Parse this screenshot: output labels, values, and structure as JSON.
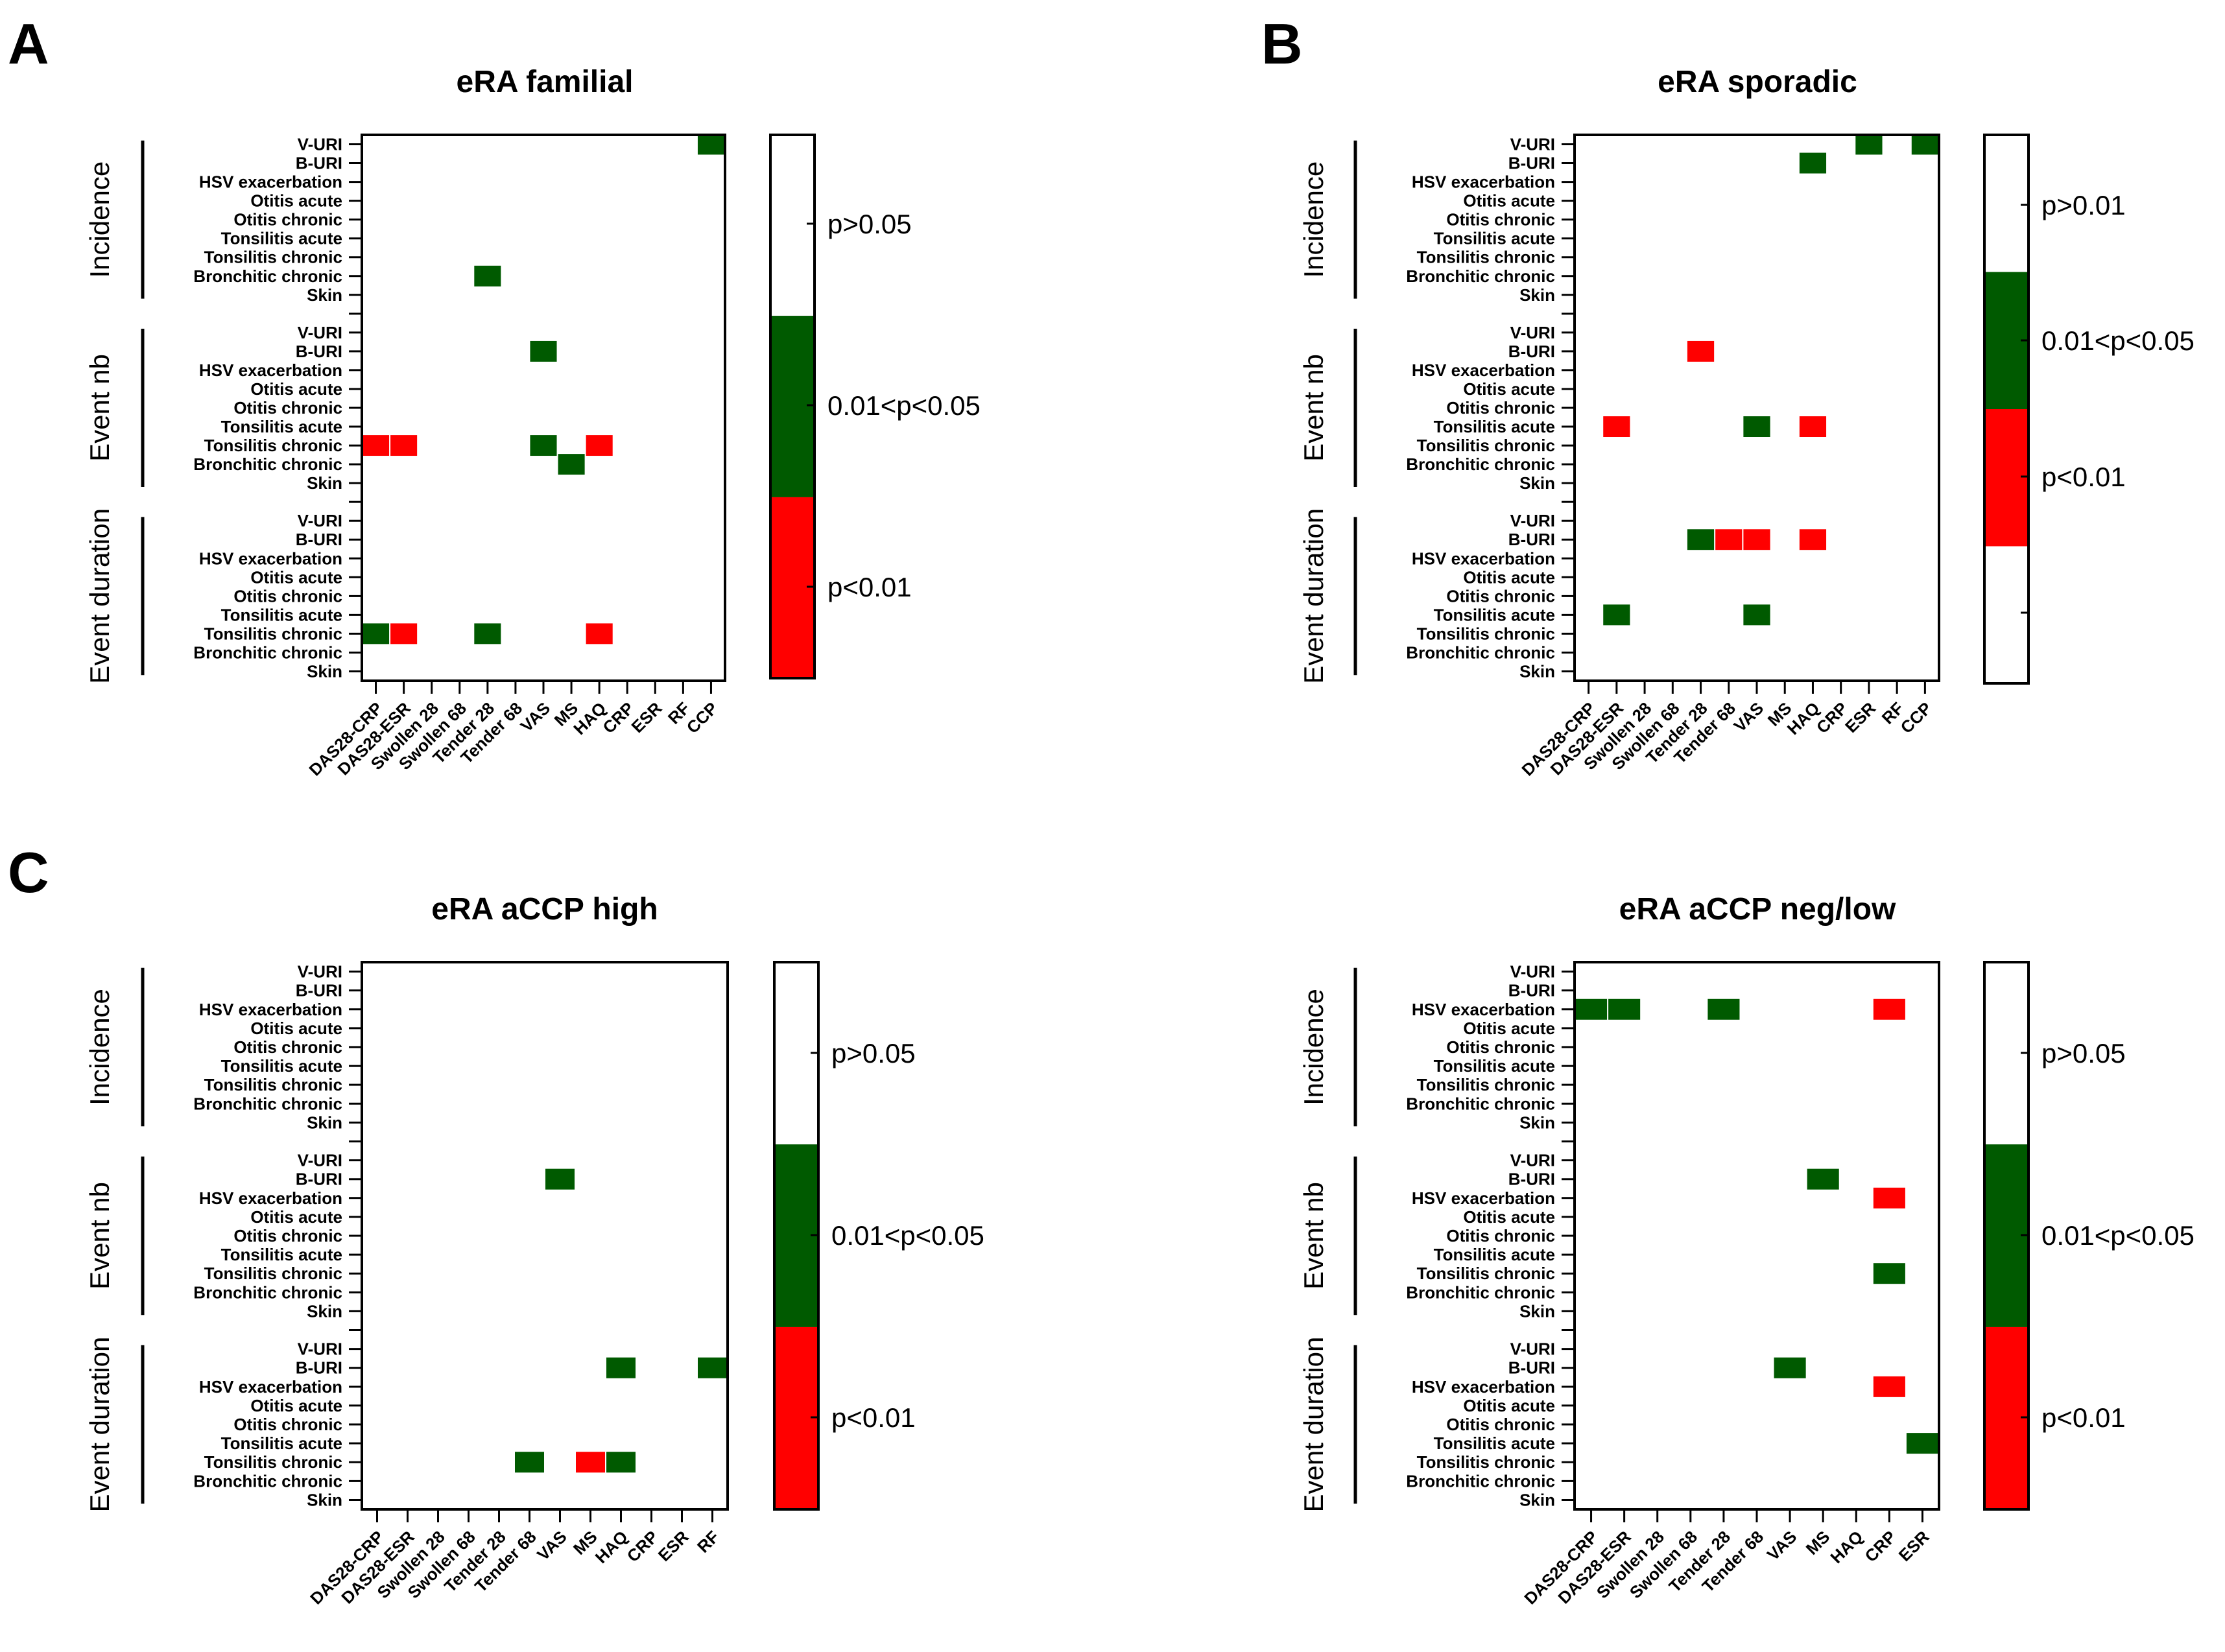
{
  "colors": {
    "green": "#005a00",
    "red": "#ff0000",
    "white": "#ffffff"
  },
  "row_labels": [
    "V-URI",
    "B-URI",
    "HSV exacerbation",
    "Otitis acute",
    "Otitis chronic",
    "Tonsilitis acute",
    "Tonsilitis chronic",
    "Bronchitic chronic",
    "Skin"
  ],
  "chart_data": [
    {
      "type": "heatmap",
      "panel_label": "A",
      "title": "eRA familial",
      "groups": [
        "Incidence",
        "Event nb",
        "Event duration"
      ],
      "columns": [
        "DAS28-CRP",
        "DAS28-ESR",
        "Swollen 28",
        "Swollen 68",
        "Tender 28",
        "Tender 68",
        "VAS",
        "MS",
        "HAQ",
        "CRP",
        "ESR",
        "RF",
        "CCP"
      ],
      "legend": [
        "p>0.05",
        "0.01<p<0.05",
        "p<0.01"
      ],
      "cells": [
        {
          "group": 0,
          "row": 0,
          "col": 12,
          "level": "green"
        },
        {
          "group": 0,
          "row": 7,
          "col": 4,
          "level": "green"
        },
        {
          "group": 1,
          "row": 1,
          "col": 6,
          "level": "green"
        },
        {
          "group": 1,
          "row": 6,
          "col": 0,
          "level": "red"
        },
        {
          "group": 1,
          "row": 6,
          "col": 1,
          "level": "red"
        },
        {
          "group": 1,
          "row": 6,
          "col": 6,
          "level": "green"
        },
        {
          "group": 1,
          "row": 6,
          "col": 8,
          "level": "red"
        },
        {
          "group": 1,
          "row": 7,
          "col": 7,
          "level": "green"
        },
        {
          "group": 2,
          "row": 6,
          "col": 0,
          "level": "green"
        },
        {
          "group": 2,
          "row": 6,
          "col": 1,
          "level": "red"
        },
        {
          "group": 2,
          "row": 6,
          "col": 4,
          "level": "green"
        },
        {
          "group": 2,
          "row": 6,
          "col": 8,
          "level": "red"
        }
      ]
    },
    {
      "type": "heatmap",
      "panel_label": "B",
      "title": "eRA sporadic",
      "groups": [
        "Incidence",
        "Event nb",
        "Event duration"
      ],
      "columns": [
        "DAS28-CRP",
        "DAS28-ESR",
        "Swollen 28",
        "Swollen 68",
        "Tender 28",
        "Tender 68",
        "VAS",
        "MS",
        "HAQ",
        "CRP",
        "ESR",
        "RF",
        "CCP"
      ],
      "legend": [
        "p>0.01",
        "0.01<p<0.05",
        "p<0.01"
      ],
      "cells": [
        {
          "group": 0,
          "row": 0,
          "col": 10,
          "level": "green"
        },
        {
          "group": 0,
          "row": 0,
          "col": 12,
          "level": "green"
        },
        {
          "group": 0,
          "row": 1,
          "col": 8,
          "level": "green"
        },
        {
          "group": 1,
          "row": 1,
          "col": 4,
          "level": "red"
        },
        {
          "group": 1,
          "row": 5,
          "col": 1,
          "level": "red"
        },
        {
          "group": 1,
          "row": 5,
          "col": 6,
          "level": "green"
        },
        {
          "group": 1,
          "row": 5,
          "col": 8,
          "level": "red"
        },
        {
          "group": 2,
          "row": 1,
          "col": 4,
          "level": "green"
        },
        {
          "group": 2,
          "row": 1,
          "col": 5,
          "level": "red"
        },
        {
          "group": 2,
          "row": 1,
          "col": 6,
          "level": "red"
        },
        {
          "group": 2,
          "row": 1,
          "col": 8,
          "level": "red"
        },
        {
          "group": 2,
          "row": 5,
          "col": 1,
          "level": "green"
        },
        {
          "group": 2,
          "row": 5,
          "col": 6,
          "level": "green"
        }
      ]
    },
    {
      "type": "heatmap",
      "panel_label": "C",
      "title": "eRA aCCP high",
      "groups": [
        "Incidence",
        "Event nb",
        "Event duration"
      ],
      "columns": [
        "DAS28-CRP",
        "DAS28-ESR",
        "Swollen 28",
        "Swollen 68",
        "Tender 28",
        "Tender 68",
        "VAS",
        "MS",
        "HAQ",
        "CRP",
        "ESR",
        "RF"
      ],
      "legend": [
        "p>0.05",
        "0.01<p<0.05",
        "p<0.01"
      ],
      "cells": [
        {
          "group": 1,
          "row": 1,
          "col": 6,
          "level": "green"
        },
        {
          "group": 2,
          "row": 1,
          "col": 8,
          "level": "green"
        },
        {
          "group": 2,
          "row": 1,
          "col": 11,
          "level": "green"
        },
        {
          "group": 2,
          "row": 6,
          "col": 5,
          "level": "green"
        },
        {
          "group": 2,
          "row": 6,
          "col": 7,
          "level": "red"
        },
        {
          "group": 2,
          "row": 6,
          "col": 8,
          "level": "green"
        }
      ]
    },
    {
      "type": "heatmap",
      "panel_label": "",
      "title": "eRA aCCP neg/low",
      "groups": [
        "Incidence",
        "Event nb",
        "Event duration"
      ],
      "columns": [
        "DAS28-CRP",
        "DAS28-ESR",
        "Swollen 28",
        "Swollen 68",
        "Tender 28",
        "Tender 68",
        "VAS",
        "MS",
        "HAQ",
        "CRP",
        "ESR"
      ],
      "legend": [
        "p>0.05",
        "0.01<p<0.05",
        "p<0.01"
      ],
      "cells": [
        {
          "group": 0,
          "row": 2,
          "col": 0,
          "level": "green"
        },
        {
          "group": 0,
          "row": 2,
          "col": 1,
          "level": "green"
        },
        {
          "group": 0,
          "row": 2,
          "col": 4,
          "level": "green"
        },
        {
          "group": 0,
          "row": 2,
          "col": 9,
          "level": "red"
        },
        {
          "group": 1,
          "row": 1,
          "col": 7,
          "level": "green"
        },
        {
          "group": 1,
          "row": 2,
          "col": 9,
          "level": "red"
        },
        {
          "group": 1,
          "row": 6,
          "col": 9,
          "level": "green"
        },
        {
          "group": 2,
          "row": 1,
          "col": 6,
          "level": "green"
        },
        {
          "group": 2,
          "row": 2,
          "col": 9,
          "level": "red"
        },
        {
          "group": 2,
          "row": 5,
          "col": 10,
          "level": "green"
        }
      ]
    }
  ]
}
